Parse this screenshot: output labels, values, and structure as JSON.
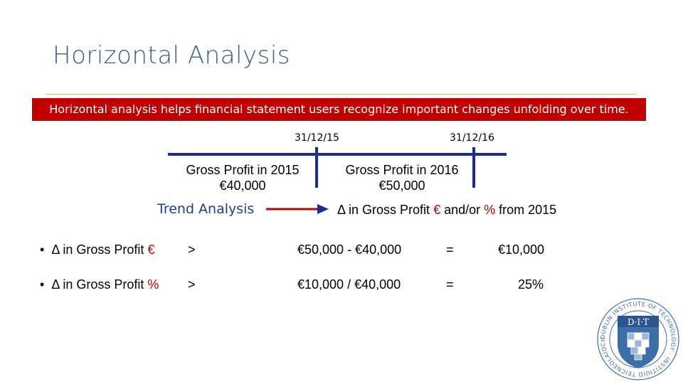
{
  "slide": {
    "title": "Horizontal Analysis",
    "banner": "Horizontal analysis helps financial statement users recognize important changes unfolding over time."
  },
  "timeline": {
    "date1": "31/12/15",
    "date2": "31/12/16",
    "gp2015_label": "Gross Profit  in 2015",
    "gp2015_value": "€40,000",
    "gp2016_label": "Gross Profit  in 2016",
    "gp2016_value": "€50,000"
  },
  "trend": {
    "label": "Trend Analysis",
    "delta_prefix": "Δ in Gross Profit ",
    "euro": "€",
    "andor": " and/or ",
    "pct": "%",
    "suffix": " from 2015"
  },
  "rows": [
    {
      "bullet": "•",
      "prefix": "Δ in Gross Profit ",
      "symbol": "€",
      "arrow": ">",
      "formula": "€50,000 - €40,000",
      "equals": "=",
      "result": "€10,000"
    },
    {
      "bullet": "•",
      "prefix": "Δ in Gross Profit ",
      "symbol": "%",
      "arrow": ">",
      "formula": "€10,000 / €40,000",
      "equals": "=",
      "result": "25%"
    }
  ],
  "logo": {
    "abbr": "D·I·T",
    "ring_text": "DUBLIN INSTITUTE OF TECHNOLOGY · INSTITIÚID TEICNEOLAÍOCHTA ÁTHA CLIATH ·",
    "colors": {
      "blue": "#3c6ea8",
      "light": "#9ab8d8"
    }
  },
  "colors": {
    "accent_red": "#c00000",
    "title_blue": "#3a5f86",
    "timeline_blue": "#1c2d8f"
  }
}
